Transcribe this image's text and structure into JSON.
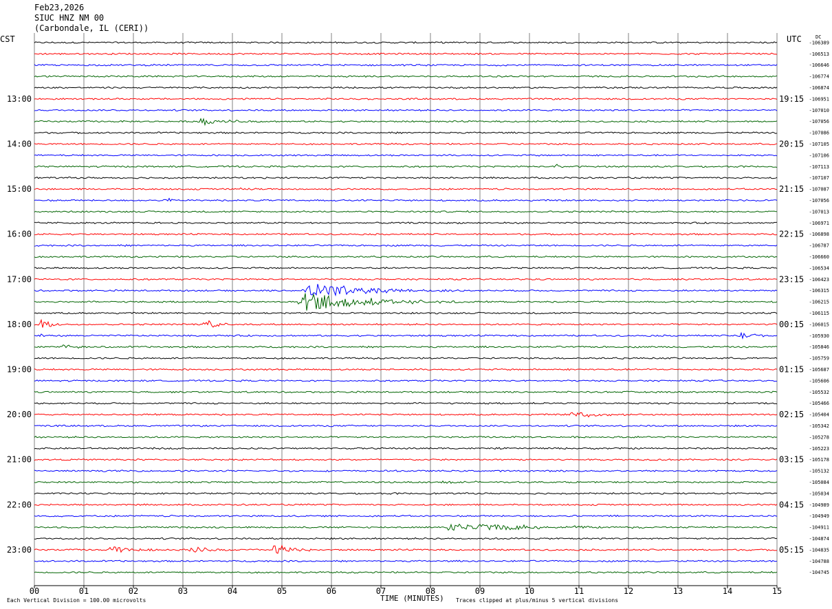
{
  "header": {
    "date": "Feb23,2026",
    "station": "SIUC HNZ NM 00",
    "location": "(Carbondale, IL (CERI))"
  },
  "left_timezone": "CST",
  "right_timezone": "UTC",
  "dc_label": "DC",
  "footer": {
    "scale_note": "Each Vertical Division =  100.00 microvolts",
    "axis_title": "TIME (MINUTES)",
    "clip_note": "Traces clipped at plus/minus 5 vertical divisions"
  },
  "colors": {
    "trace_cycle": [
      "#000000",
      "#ff0000",
      "#0000ff",
      "#006400"
    ],
    "grid": "#808080"
  },
  "chart_data": {
    "type": "line",
    "x_ticks": [
      "00",
      "01",
      "02",
      "03",
      "04",
      "05",
      "06",
      "07",
      "08",
      "09",
      "10",
      "11",
      "12",
      "13",
      "14",
      "15"
    ],
    "xlim": [
      0,
      15
    ],
    "trace_count": 48,
    "trace_minutes": 15,
    "left_hour_labels": [
      {
        "trace": 5,
        "label": "13:00"
      },
      {
        "trace": 9,
        "label": "14:00"
      },
      {
        "trace": 13,
        "label": "15:00"
      },
      {
        "trace": 17,
        "label": "16:00"
      },
      {
        "trace": 21,
        "label": "17:00"
      },
      {
        "trace": 25,
        "label": "18:00"
      },
      {
        "trace": 29,
        "label": "19:00"
      },
      {
        "trace": 33,
        "label": "20:00"
      },
      {
        "trace": 37,
        "label": "21:00"
      },
      {
        "trace": 41,
        "label": "22:00"
      },
      {
        "trace": 45,
        "label": "23:00"
      }
    ],
    "right_hour_labels": [
      {
        "trace": 5,
        "label": "19:15"
      },
      {
        "trace": 9,
        "label": "20:15"
      },
      {
        "trace": 13,
        "label": "21:15"
      },
      {
        "trace": 17,
        "label": "22:15"
      },
      {
        "trace": 21,
        "label": "23:15"
      },
      {
        "trace": 25,
        "label": "00:15"
      },
      {
        "trace": 29,
        "label": "01:15"
      },
      {
        "trace": 33,
        "label": "02:15"
      },
      {
        "trace": 37,
        "label": "03:15"
      },
      {
        "trace": 41,
        "label": "04:15"
      },
      {
        "trace": 45,
        "label": "05:15"
      }
    ],
    "dc_offsets": [
      "-106389",
      "-106513",
      "-106646",
      "-106774",
      "-106874",
      "-106951",
      "-107010",
      "-107056",
      "-107086",
      "-107105",
      "-107106",
      "-107113",
      "-107107",
      "-107087",
      "-107056",
      "-107013",
      "-106971",
      "-106898",
      "-106787",
      "-106660",
      "-106534",
      "-106423",
      "-106315",
      "-106215",
      "-106115",
      "-106015",
      "-105930",
      "-105846",
      "-105759",
      "-105687",
      "-105606",
      "-105532",
      "-105466",
      "-105404",
      "-105342",
      "-105278",
      "-105223",
      "-105178",
      "-105132",
      "-105084",
      "-105034",
      "-104989",
      "-104949",
      "-104911",
      "-104874",
      "-104835",
      "-104788",
      "-104745"
    ],
    "events": [
      {
        "trace": 7,
        "minute": 3.3,
        "duration": 1.4,
        "amplitude": 0.9
      },
      {
        "trace": 13,
        "minute": 4.15,
        "duration": 0.5,
        "amplitude": 1.0
      },
      {
        "trace": 14,
        "minute": 2.7,
        "duration": 0.3,
        "amplitude": 0.7
      },
      {
        "trace": 11,
        "minute": 10.5,
        "duration": 0.3,
        "amplitude": 0.8
      },
      {
        "trace": 23,
        "minute": 5.3,
        "duration": 3.5,
        "amplitude": 2.6
      },
      {
        "trace": 22,
        "minute": 5.4,
        "duration": 3.4,
        "amplitude": 2.0
      },
      {
        "trace": 25,
        "minute": 0.1,
        "duration": 0.6,
        "amplitude": 1.6
      },
      {
        "trace": 25,
        "minute": 3.4,
        "duration": 0.8,
        "amplitude": 1.3
      },
      {
        "trace": 26,
        "minute": 0.05,
        "duration": 0.3,
        "amplitude": 1.5
      },
      {
        "trace": 26,
        "minute": 14.2,
        "duration": 0.9,
        "amplitude": 0.9
      },
      {
        "trace": 27,
        "minute": 0.5,
        "duration": 1.0,
        "amplitude": 0.6
      },
      {
        "trace": 33,
        "minute": 10.8,
        "duration": 1.8,
        "amplitude": 0.8
      },
      {
        "trace": 39,
        "minute": 8.2,
        "duration": 1.5,
        "amplitude": 0.5
      },
      {
        "trace": 43,
        "minute": 8.2,
        "duration": 5.0,
        "amplitude": 1.2
      },
      {
        "trace": 45,
        "minute": 1.5,
        "duration": 1.2,
        "amplitude": 1.1
      },
      {
        "trace": 45,
        "minute": 3.1,
        "duration": 1.0,
        "amplitude": 1.0
      },
      {
        "trace": 45,
        "minute": 4.8,
        "duration": 0.9,
        "amplitude": 2.4
      }
    ]
  }
}
